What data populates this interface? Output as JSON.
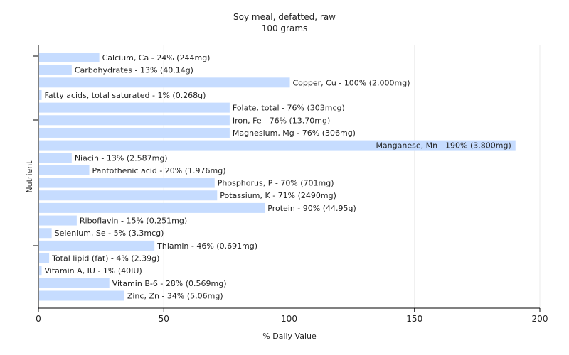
{
  "chart_data": {
    "type": "bar",
    "orientation": "horizontal",
    "title": "Soy meal, defatted, raw",
    "subtitle": "100 grams",
    "xlabel": "% Daily Value",
    "ylabel": "Nutrient",
    "xlim": [
      0,
      200
    ],
    "xticks": [
      0,
      50,
      100,
      150,
      200
    ],
    "grid": true,
    "bar_color": "#c6dcff",
    "categories": [
      "Calcium, Ca",
      "Carbohydrates",
      "Copper, Cu",
      "Fatty acids, total saturated",
      "Folate, total",
      "Iron, Fe",
      "Magnesium, Mg",
      "Manganese, Mn",
      "Niacin",
      "Pantothenic acid",
      "Phosphorus, P",
      "Potassium, K",
      "Protein",
      "Riboflavin",
      "Selenium, Se",
      "Thiamin",
      "Total lipid (fat)",
      "Vitamin A, IU",
      "Vitamin B-6",
      "Zinc, Zn"
    ],
    "values": [
      24,
      13,
      100,
      1,
      76,
      76,
      76,
      190,
      13,
      20,
      70,
      71,
      90,
      15,
      5,
      46,
      4,
      1,
      28,
      34
    ],
    "labels": [
      "Calcium, Ca - 24% (244mg)",
      "Carbohydrates - 13% (40.14g)",
      "Copper, Cu - 100% (2.000mg)",
      "Fatty acids, total saturated - 1% (0.268g)",
      "Folate, total - 76% (303mcg)",
      "Iron, Fe - 76% (13.70mg)",
      "Magnesium, Mg - 76% (306mg)",
      "Manganese, Mn - 190% (3.800mg)",
      "Niacin - 13% (2.587mg)",
      "Pantothenic acid - 20% (1.976mg)",
      "Phosphorus, P - 70% (701mg)",
      "Potassium, K - 71% (2490mg)",
      "Protein - 90% (44.95g)",
      "Riboflavin - 15% (0.251mg)",
      "Selenium, Se - 5% (3.3mcg)",
      "Thiamin - 46% (0.691mg)",
      "Total lipid (fat) - 4% (2.39g)",
      "Vitamin A, IU - 1% (40IU)",
      "Vitamin B-6 - 28% (0.569mg)",
      "Zinc, Zn - 34% (5.06mg)"
    ]
  }
}
